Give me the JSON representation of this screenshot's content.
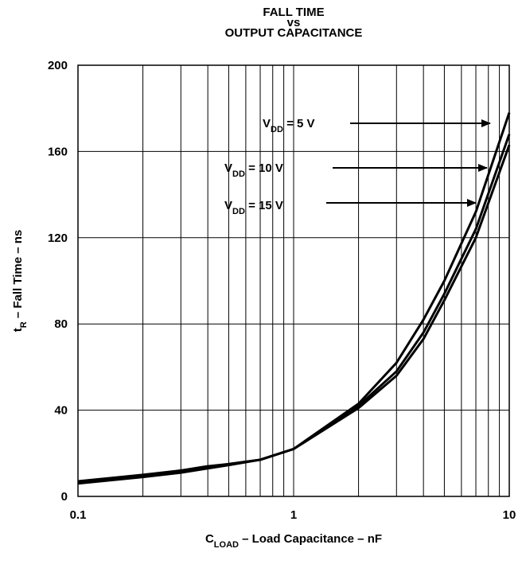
{
  "chart_data": {
    "type": "line",
    "title": [
      "FALL TIME",
      "vs",
      "OUTPUT CAPACITANCE"
    ],
    "x_label": {
      "text": "C",
      "sub": "LOAD",
      "rest": " –  Load Capacitance – nF"
    },
    "y_label": {
      "text": "t",
      "sub": "R",
      "rest": " – Fall Time – ns"
    },
    "log_x": true,
    "grid": true,
    "x": [
      0.1,
      0.2,
      0.3,
      0.4,
      0.5,
      0.7,
      1,
      2,
      3,
      4,
      5,
      7,
      10
    ],
    "series": [
      {
        "name": {
          "text": "V",
          "sub": "DD",
          "rest": " = 5 V"
        },
        "color": "#000000",
        "values": [
          7,
          10,
          12,
          14,
          15,
          17,
          22,
          43,
          62,
          82,
          100,
          132,
          178
        ]
      },
      {
        "name": {
          "text": "V",
          "sub": "DD",
          "rest": " = 10 V"
        },
        "color": "#000000",
        "values": [
          6.5,
          9.5,
          12,
          13.5,
          15,
          17,
          22,
          42,
          58,
          76,
          94,
          124,
          168
        ]
      },
      {
        "name": {
          "text": "V",
          "sub": "DD",
          "rest": " = 15 V"
        },
        "color": "#000000",
        "values": [
          6,
          9,
          11,
          13,
          14.5,
          17,
          22,
          41,
          56,
          73,
          91,
          120,
          163
        ]
      }
    ],
    "xlim": [
      0.1,
      10
    ],
    "xticks": [
      0.1,
      1,
      10
    ],
    "xminor": [
      0.2,
      0.3,
      0.4,
      0.5,
      0.6,
      0.7,
      0.8,
      0.9,
      2,
      3,
      4,
      5,
      6,
      7,
      8,
      9
    ],
    "ylim": [
      0,
      200
    ],
    "yticks": [
      0,
      40,
      80,
      120,
      160,
      200
    ]
  }
}
